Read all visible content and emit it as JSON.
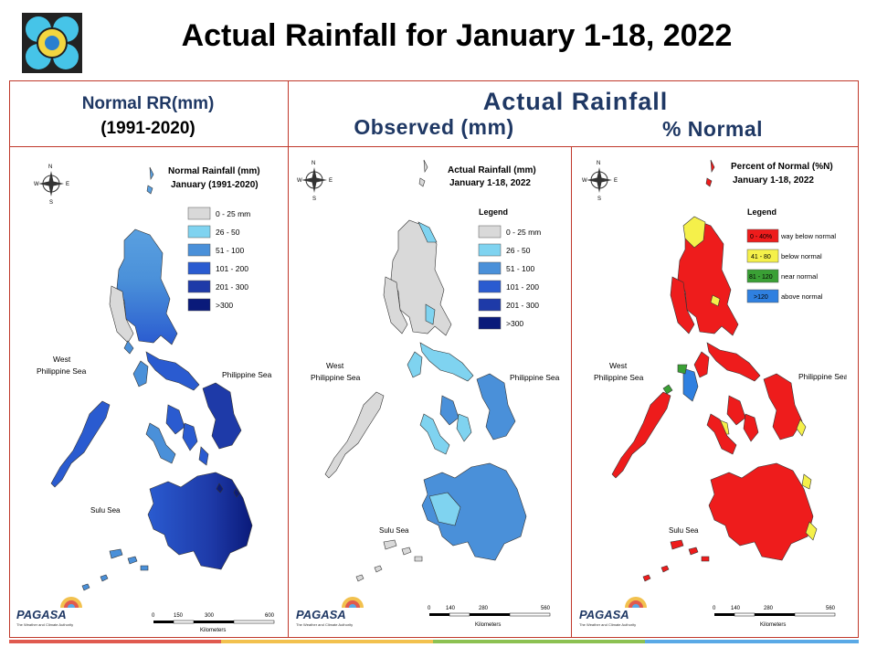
{
  "header": {
    "title": "Actual Rainfall for January 1-18, 2022",
    "col_left": [
      "Normal RR(mm)",
      "(1991-2020)"
    ],
    "col_right_top": "Actual Rainfall",
    "col_mid_sub": "Observed (mm)",
    "col_right_sub": "% Normal"
  },
  "panels": [
    {
      "title": [
        "Normal Rainfall (mm)",
        "January (1991-2020)"
      ],
      "legend_title": "",
      "legend": [
        {
          "label": "0 - 25 mm",
          "color": "#d9d9d9"
        },
        {
          "label": "26 - 50",
          "color": "#7fd3f0"
        },
        {
          "label": "51 - 100",
          "color": "#4a90d9"
        },
        {
          "label": "101 - 200",
          "color": "#2a5bd0"
        },
        {
          "label": "201 - 300",
          "color": "#1e3aa8"
        },
        {
          "label": ">300",
          "color": "#0a1a7a"
        }
      ],
      "places": {
        "wps": [
          "West",
          "Philippine Sea"
        ],
        "ps": "Philippine Sea",
        "sulu": "Sulu Sea"
      },
      "scale": {
        "ticks": [
          "0",
          "150",
          "300",
          "600"
        ],
        "unit": "Kilometers"
      }
    },
    {
      "title": [
        "Actual Rainfall (mm)",
        "January 1-18, 2022"
      ],
      "legend_title": "Legend",
      "legend": [
        {
          "label": "0 - 25 mm",
          "color": "#d9d9d9"
        },
        {
          "label": "26 - 50",
          "color": "#7fd3f0"
        },
        {
          "label": "51 - 100",
          "color": "#4a90d9"
        },
        {
          "label": "101 - 200",
          "color": "#2a5bd0"
        },
        {
          "label": "201 - 300",
          "color": "#1e3aa8"
        },
        {
          "label": ">300",
          "color": "#0a1a7a"
        }
      ],
      "places": {
        "wps": [
          "West",
          "Philippine Sea"
        ],
        "ps": "Philippine Sea",
        "sulu": "Sulu Sea"
      },
      "scale": {
        "ticks": [
          "0",
          "140",
          "280",
          "560"
        ],
        "unit": "Kilometers"
      }
    },
    {
      "title": [
        "Percent of Normal (%N)",
        "January 1-18, 2022"
      ],
      "legend_title": "Legend",
      "legend": [
        {
          "label": "0 - 40%",
          "desc": "way below normal",
          "color": "#ee1c1c"
        },
        {
          "label": "41 - 80",
          "desc": "below normal",
          "color": "#f5f04a"
        },
        {
          "label": "81 - 120",
          "desc": "near normal",
          "color": "#3aa035"
        },
        {
          "label": ">120",
          "desc": "above normal",
          "color": "#2f80e0"
        }
      ],
      "places": {
        "wps": [
          "West",
          "Philippine Sea"
        ],
        "ps": "Philippine Sea",
        "sulu": "Sulu Sea"
      },
      "scale": {
        "ticks": [
          "0",
          "140",
          "280",
          "560"
        ],
        "unit": "Kilometers"
      }
    }
  ],
  "compass": {
    "n": "N",
    "s": "S",
    "e": "E",
    "w": "W"
  },
  "branding": {
    "name": "PAGASA",
    "tagline": "The Weather and Climate Authority"
  },
  "colors": {
    "frame": "#c0392b",
    "header_text": "#1f3864",
    "footer_bar": [
      "#e05a4f",
      "#f2c14e",
      "#8cc152",
      "#5aa9e6"
    ]
  }
}
